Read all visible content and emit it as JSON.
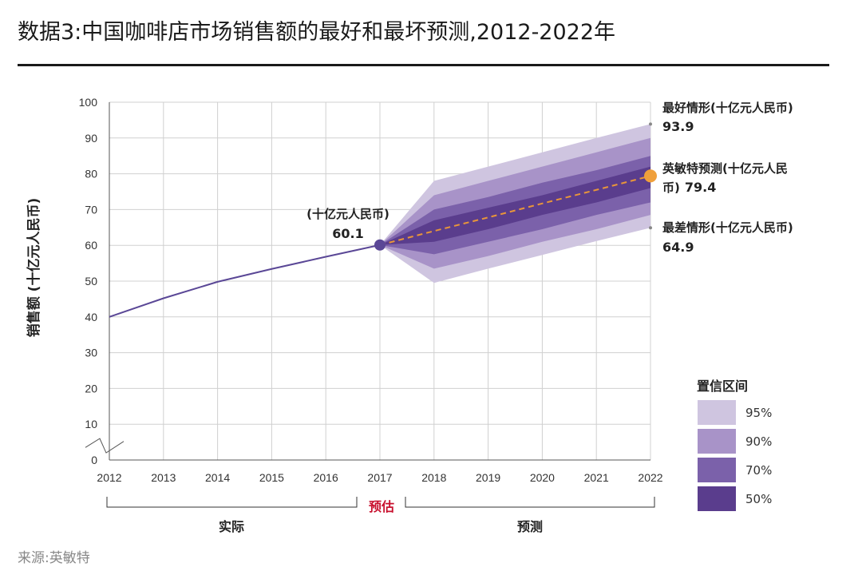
{
  "title": "数据3:中国咖啡店市场销售额的最好和最坏预测,2012-2022年",
  "source": "来源:英敏特",
  "chart_data": {
    "type": "line",
    "ylabel": "销售额 (十亿元人民币)",
    "ylim": [
      0,
      100
    ],
    "yticks": [
      0,
      10,
      20,
      30,
      40,
      50,
      60,
      70,
      80,
      90,
      100
    ],
    "x": [
      2012,
      2013,
      2014,
      2015,
      2016,
      2017,
      2018,
      2019,
      2020,
      2021,
      2022
    ],
    "actual": {
      "name": "实际",
      "x": [
        2012,
        2013,
        2014,
        2015,
        2016,
        2017
      ],
      "values": [
        40,
        45.2,
        49.8,
        53.4,
        56.8,
        60.1
      ]
    },
    "forecast": {
      "name": "英敏特预测",
      "x": [
        2017,
        2018,
        2019,
        2020,
        2021,
        2022
      ],
      "values": [
        60.1,
        64.0,
        67.8,
        71.7,
        75.5,
        79.4
      ]
    },
    "bands": [
      {
        "level": "95%",
        "color": "#cfc5e0",
        "upper": [
          60.1,
          78,
          82,
          86,
          90,
          93.9
        ],
        "lower": [
          60.1,
          49.5,
          53.5,
          57.3,
          61.2,
          64.9
        ]
      },
      {
        "level": "90%",
        "color": "#a893c8",
        "upper": [
          60.1,
          74,
          78,
          82,
          86,
          90
        ],
        "lower": [
          60.1,
          53.5,
          57,
          61,
          64.5,
          68.5
        ]
      },
      {
        "level": "70%",
        "color": "#7b61aa",
        "upper": [
          60.1,
          70,
          73.5,
          77.5,
          81,
          85
        ],
        "lower": [
          60.1,
          57.5,
          61,
          64.5,
          68.5,
          72
        ]
      },
      {
        "level": "50%",
        "color": "#5a3d8d",
        "upper": [
          60.1,
          67,
          70.5,
          74,
          78,
          82
        ],
        "lower": [
          60.1,
          61,
          64.5,
          68.5,
          72,
          76
        ]
      }
    ],
    "annotations": {
      "point_2017": {
        "label": "(十亿元人民币)",
        "value": "60.1"
      },
      "best": {
        "label": "最好情形(十亿元人民币)",
        "value": "93.9"
      },
      "forecast": {
        "label1": "英敏特预测(十亿元人民",
        "label2": "币)",
        "value": "79.4"
      },
      "worst": {
        "label": "最差情形(十亿元人民币)",
        "value": "64.9"
      }
    },
    "period_labels": {
      "actual": "实际",
      "estimate": "预估",
      "forecast": "预测"
    },
    "legend_title": "置信区间",
    "colors": {
      "line": "#5a4796",
      "forecast_line": "#e8953a",
      "marker_end": "#f0a03c",
      "estimate_text": "#c8102e"
    }
  }
}
